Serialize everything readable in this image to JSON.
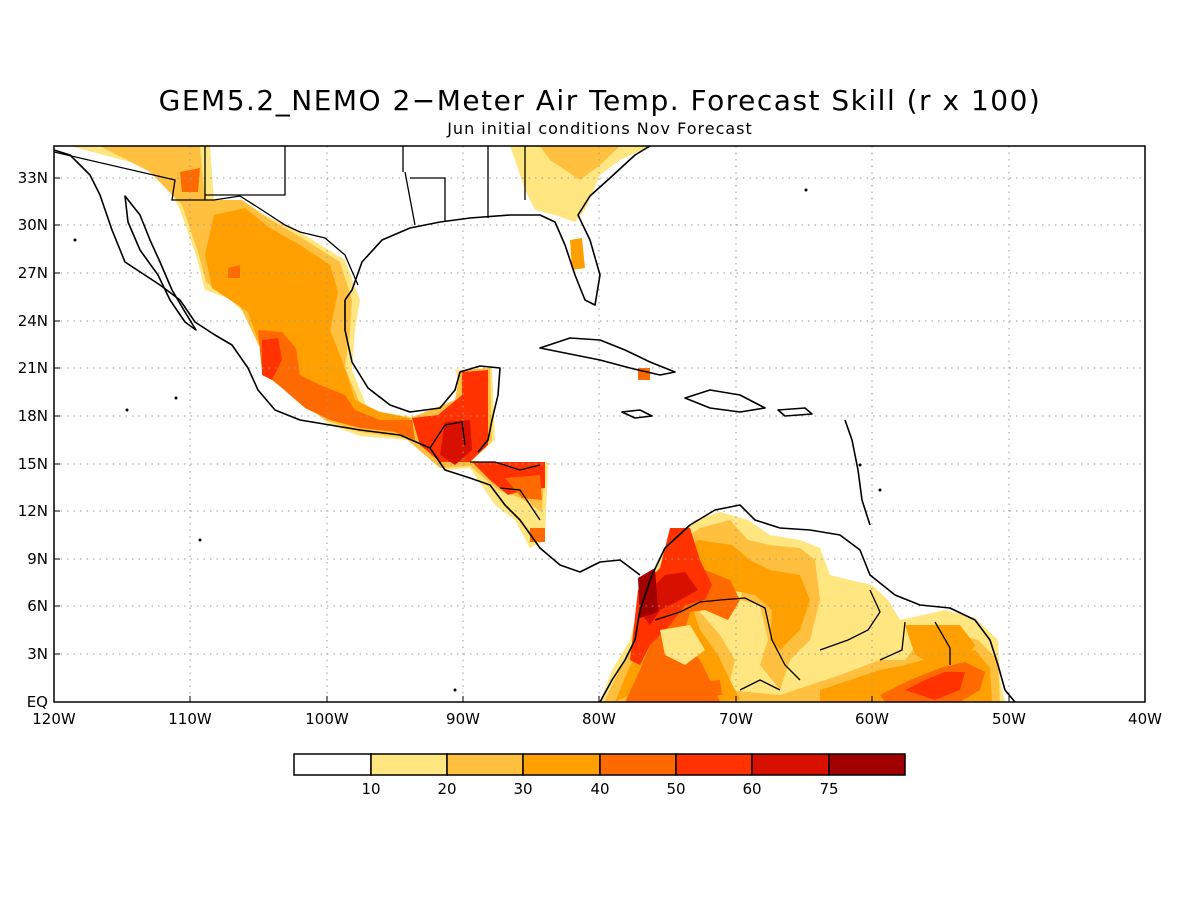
{
  "title": "GEM5.2_NEMO 2−Meter Air Temp. Forecast Skill (r x 100)",
  "subtitle": "Jun initial conditions  Nov Forecast",
  "map": {
    "lat_range": [
      0,
      35
    ],
    "lon_range": [
      -120,
      -40
    ],
    "lat_labels": [
      {
        "text": "EQ",
        "lat": 0
      },
      {
        "text": "3N",
        "lat": 3
      },
      {
        "text": "6N",
        "lat": 6
      },
      {
        "text": "9N",
        "lat": 9
      },
      {
        "text": "12N",
        "lat": 12
      },
      {
        "text": "15N",
        "lat": 15
      },
      {
        "text": "18N",
        "lat": 18
      },
      {
        "text": "21N",
        "lat": 21
      },
      {
        "text": "24N",
        "lat": 24
      },
      {
        "text": "27N",
        "lat": 27
      },
      {
        "text": "30N",
        "lat": 30
      },
      {
        "text": "33N",
        "lat": 33
      }
    ],
    "lon_labels": [
      {
        "text": "120W",
        "lon": -120
      },
      {
        "text": "110W",
        "lon": -110
      },
      {
        "text": "100W",
        "lon": -100
      },
      {
        "text": "90W",
        "lon": -90
      },
      {
        "text": "80W",
        "lon": -80
      },
      {
        "text": "70W",
        "lon": -70
      },
      {
        "text": "60W",
        "lon": -60
      },
      {
        "text": "50W",
        "lon": -50
      },
      {
        "text": "40W",
        "lon": -40
      }
    ]
  },
  "colorbar": {
    "labels": [
      "10",
      "20",
      "30",
      "40",
      "50",
      "60",
      "75"
    ],
    "colors": [
      "#ffffff",
      "#ffe680",
      "#ffc040",
      "#ffa000",
      "#ff6a00",
      "#ff3200",
      "#d81000",
      "#a00000"
    ]
  }
}
